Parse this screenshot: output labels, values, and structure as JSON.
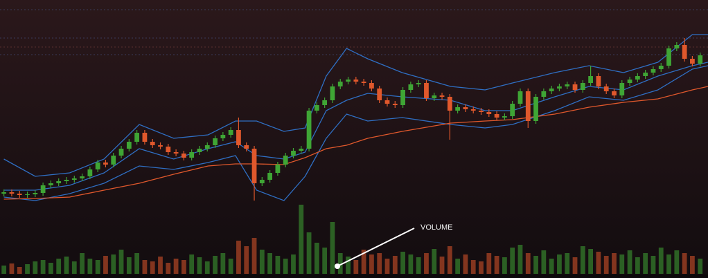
{
  "chart_data": {
    "type": "candlestick",
    "annotation": "VOLUME",
    "xlim": [
      -0.5,
      90
    ],
    "ylim": [
      0,
      310
    ],
    "volume_ylim": [
      0,
      100
    ],
    "up_color": "#3fa535",
    "down_color": "#e0582c",
    "open": [
      30,
      32,
      30,
      28,
      29,
      31,
      42,
      45,
      48,
      50,
      52,
      55,
      65,
      75,
      72,
      85,
      95,
      105,
      118,
      105,
      100,
      98,
      90,
      88,
      82,
      90,
      95,
      100,
      110,
      115,
      122,
      100,
      95,
      45,
      50,
      60,
      72,
      85,
      92,
      95,
      150,
      158,
      165,
      185,
      192,
      195,
      192,
      190,
      182,
      165,
      160,
      158,
      180,
      188,
      190,
      168,
      172,
      170,
      150,
      155,
      152,
      150,
      148,
      145,
      140,
      142,
      160,
      178,
      135,
      170,
      178,
      182,
      185,
      188,
      180,
      190,
      200,
      185,
      178,
      172,
      190,
      195,
      200,
      205,
      210,
      215,
      240,
      245,
      225,
      218
    ],
    "high": [
      36,
      36,
      34,
      33,
      35,
      46,
      49,
      52,
      54,
      56,
      59,
      69,
      79,
      79,
      89,
      99,
      109,
      122,
      122,
      109,
      104,
      102,
      94,
      92,
      94,
      99,
      104,
      114,
      119,
      126,
      140,
      104,
      99,
      54,
      64,
      76,
      89,
      96,
      99,
      154,
      162,
      169,
      189,
      196,
      199,
      199,
      196,
      194,
      186,
      169,
      164,
      184,
      192,
      194,
      194,
      176,
      176,
      174,
      159,
      159,
      156,
      154,
      152,
      149,
      146,
      164,
      182,
      182,
      174,
      182,
      186,
      189,
      192,
      192,
      194,
      215,
      204,
      189,
      182,
      194,
      199,
      204,
      209,
      214,
      219,
      244,
      249,
      255,
      229,
      234
    ],
    "low": [
      26,
      26,
      24,
      24,
      25,
      27,
      38,
      41,
      44,
      46,
      48,
      51,
      61,
      68,
      68,
      81,
      91,
      101,
      101,
      96,
      94,
      86,
      84,
      78,
      78,
      86,
      91,
      96,
      106,
      111,
      96,
      91,
      20,
      41,
      46,
      56,
      68,
      81,
      88,
      91,
      146,
      154,
      161,
      181,
      188,
      188,
      186,
      178,
      161,
      156,
      154,
      154,
      176,
      184,
      164,
      164,
      166,
      108,
      146,
      148,
      146,
      144,
      141,
      136,
      136,
      138,
      156,
      125,
      131,
      166,
      174,
      178,
      181,
      176,
      176,
      186,
      181,
      174,
      168,
      168,
      186,
      191,
      196,
      201,
      206,
      211,
      236,
      221,
      214,
      214
    ],
    "close": [
      32,
      30,
      28,
      29,
      31,
      42,
      45,
      48,
      50,
      52,
      55,
      65,
      75,
      72,
      85,
      95,
      105,
      118,
      105,
      100,
      98,
      90,
      88,
      82,
      90,
      95,
      100,
      110,
      115,
      122,
      100,
      95,
      45,
      50,
      60,
      72,
      85,
      92,
      95,
      150,
      158,
      165,
      185,
      192,
      195,
      192,
      190,
      182,
      165,
      160,
      158,
      180,
      188,
      190,
      168,
      172,
      170,
      150,
      155,
      152,
      150,
      148,
      145,
      140,
      142,
      160,
      178,
      135,
      170,
      178,
      182,
      185,
      188,
      180,
      190,
      200,
      185,
      178,
      172,
      190,
      195,
      200,
      205,
      210,
      215,
      240,
      245,
      225,
      218,
      230
    ],
    "volume": [
      12,
      15,
      10,
      14,
      18,
      20,
      16,
      22,
      25,
      18,
      30,
      22,
      20,
      26,
      28,
      35,
      24,
      30,
      20,
      18,
      25,
      16,
      22,
      20,
      28,
      24,
      18,
      26,
      30,
      22,
      48,
      40,
      52,
      35,
      30,
      26,
      22,
      28,
      100,
      60,
      45,
      38,
      75,
      30,
      25,
      20,
      35,
      28,
      30,
      22,
      26,
      32,
      28,
      24,
      30,
      36,
      25,
      40,
      22,
      28,
      20,
      18,
      30,
      26,
      24,
      38,
      42,
      30,
      26,
      34,
      22,
      28,
      30,
      24,
      40,
      36,
      32,
      26,
      30,
      28,
      34,
      24,
      30,
      26,
      38,
      28,
      34,
      30,
      26,
      22
    ],
    "overlays": {
      "x": [
        0,
        4,
        8.4,
        12.8,
        17.3,
        21.7,
        26.1,
        29.6,
        32.3,
        35.8,
        38.5,
        41.2,
        43.8,
        46.5,
        50.9,
        57.1,
        61.5,
        65,
        70.4,
        74.8,
        79.2,
        83.6,
        88,
        90
      ],
      "lines": [
        {
          "color": "#2f6fc4",
          "values": [
            80,
            55,
            60,
            80,
            130,
            110,
            115,
            135,
            135,
            120,
            125,
            200,
            240,
            225,
            205,
            185,
            180,
            190,
            205,
            215,
            205,
            220,
            260,
            260
          ]
        },
        {
          "color": "#2f6fc4",
          "values": [
            35,
            35,
            42,
            60,
            95,
            80,
            95,
            105,
            85,
            80,
            90,
            150,
            165,
            175,
            170,
            165,
            150,
            150,
            170,
            185,
            180,
            200,
            215,
            220
          ]
        },
        {
          "color": "#2f6fc4",
          "values": [
            25,
            20,
            30,
            45,
            70,
            65,
            75,
            85,
            35,
            20,
            55,
            110,
            145,
            135,
            140,
            130,
            125,
            130,
            150,
            170,
            165,
            180,
            210,
            215
          ]
        },
        {
          "color": "#e0582c",
          "values": [
            22,
            23,
            25,
            35,
            45,
            58,
            70,
            73,
            73,
            72,
            82,
            95,
            100,
            110,
            120,
            132,
            135,
            137,
            145,
            155,
            162,
            167,
            180,
            185
          ]
        }
      ]
    }
  }
}
